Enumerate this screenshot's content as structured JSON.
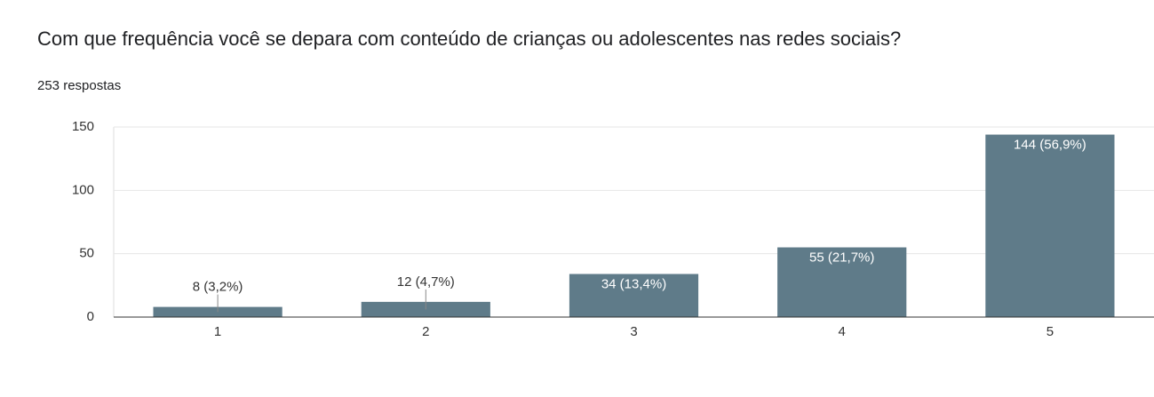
{
  "chart_data": {
    "type": "bar",
    "title": "Com que frequência você se depara com conteúdo de crianças ou adolescentes nas redes sociais?",
    "subtitle": "253 respostas",
    "categories": [
      "1",
      "2",
      "3",
      "4",
      "5"
    ],
    "values": [
      8,
      12,
      34,
      55,
      144
    ],
    "value_labels": [
      "8 (3,2%)",
      "12 (4,7%)",
      "34 (13,4%)",
      "55 (21,7%)",
      "144 (56,9%)"
    ],
    "color": "#5f7b89",
    "ylim": [
      0,
      150
    ],
    "yticks": [
      0,
      50,
      100,
      150
    ],
    "grid": true
  }
}
